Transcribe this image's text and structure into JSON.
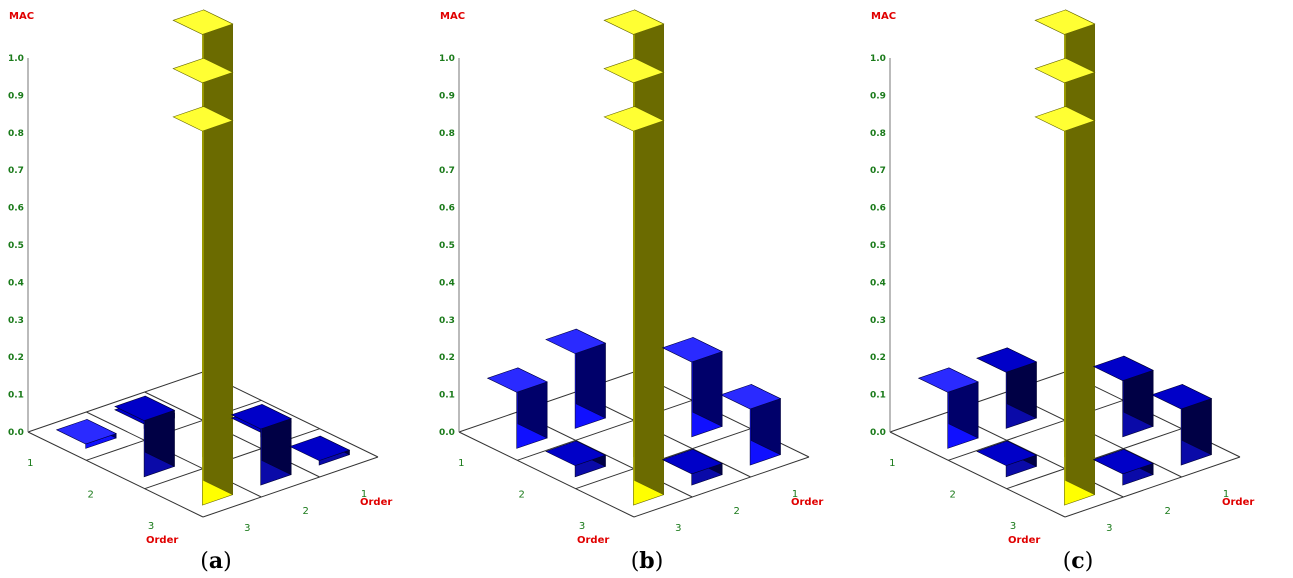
{
  "chart_data": [
    {
      "type": "bar3d",
      "caption": "a",
      "zlabel": "MAC",
      "xlabel": "Order",
      "ylabel": "Order",
      "zlim": [
        0,
        1
      ],
      "zticks": [
        "0.0",
        "0.1",
        "0.2",
        "0.3",
        "0.4",
        "0.5",
        "0.6",
        "0.7",
        "0.8",
        "0.9",
        "1.0"
      ],
      "rows": [
        "1",
        "2",
        "3"
      ],
      "cols": [
        "1",
        "2",
        "3"
      ],
      "values": [
        [
          1.0,
          0.0,
          0.0
        ],
        [
          0.0,
          1.0,
          0.15
        ],
        [
          0.0,
          0.15,
          1.0
        ]
      ],
      "bright": [
        [
          false,
          false,
          true
        ],
        [
          false,
          false,
          false
        ],
        [
          false,
          false,
          false
        ]
      ]
    },
    {
      "type": "bar3d",
      "caption": "b",
      "zlabel": "MAC",
      "xlabel": "Order",
      "ylabel": "Order",
      "zlim": [
        0,
        1
      ],
      "zticks": [
        "0.0",
        "0.1",
        "0.2",
        "0.3",
        "0.4",
        "0.5",
        "0.6",
        "0.7",
        "0.8",
        "0.9",
        "1.0"
      ],
      "rows": [
        "1",
        "2",
        "3"
      ],
      "cols": [
        "1",
        "2",
        "3"
      ],
      "values": [
        [
          1.0,
          0.2,
          0.15
        ],
        [
          0.2,
          1.0,
          0.03
        ],
        [
          0.15,
          0.03,
          1.0
        ]
      ],
      "bright": [
        [
          false,
          true,
          true
        ],
        [
          true,
          false,
          false
        ],
        [
          true,
          false,
          false
        ]
      ]
    },
    {
      "type": "bar3d",
      "caption": "c",
      "zlabel": "MAC",
      "xlabel": "Order",
      "ylabel": "Order",
      "zlim": [
        0,
        1
      ],
      "zticks": [
        "0.0",
        "0.1",
        "0.2",
        "0.3",
        "0.4",
        "0.5",
        "0.6",
        "0.7",
        "0.8",
        "0.9",
        "1.0"
      ],
      "rows": [
        "1",
        "2",
        "3"
      ],
      "cols": [
        "1",
        "2",
        "3"
      ],
      "values": [
        [
          1.0,
          0.15,
          0.15
        ],
        [
          0.15,
          1.0,
          0.03
        ],
        [
          0.15,
          0.03,
          1.0
        ]
      ],
      "bright": [
        [
          false,
          false,
          true
        ],
        [
          false,
          false,
          false
        ],
        [
          false,
          false,
          false
        ]
      ]
    }
  ]
}
